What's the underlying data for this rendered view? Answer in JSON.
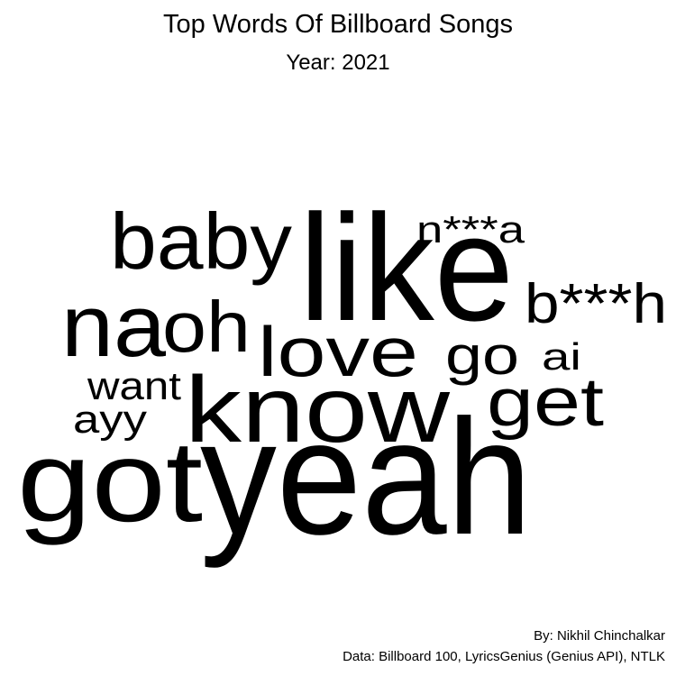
{
  "chart_data": {
    "type": "wordcloud",
    "title": "Top Words Of Billboard Songs",
    "subtitle": "Year: 2021",
    "words": [
      {
        "text": "yeah"
      },
      {
        "text": "like"
      },
      {
        "text": "got"
      },
      {
        "text": "know"
      },
      {
        "text": "na"
      },
      {
        "text": "baby"
      },
      {
        "text": "oh"
      },
      {
        "text": "love"
      },
      {
        "text": "get"
      },
      {
        "text": "b***h"
      },
      {
        "text": "go"
      },
      {
        "text": "n***a"
      },
      {
        "text": "want"
      },
      {
        "text": "ayy"
      },
      {
        "text": "ai"
      }
    ]
  },
  "caption": {
    "author": "By: Nikhil Chinchalkar",
    "source": "Data: Billboard 100, LyricsGenius (Genius API), NTLK"
  }
}
